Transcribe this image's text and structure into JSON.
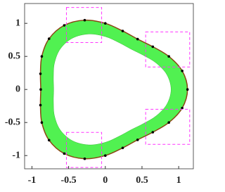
{
  "chart_data": {
    "type": "closed-curve",
    "x": [
      1.12,
      1.048,
      0.866,
      0.647,
      0.44,
      0.237,
      0,
      -0.281,
      -0.56,
      -0.767,
      -0.866,
      -0.884,
      -0.88,
      -0.884,
      -0.866,
      -0.767,
      -0.56,
      -0.281,
      0,
      0.237,
      0.44,
      0.647,
      0.866,
      1.048
    ],
    "y": [
      0,
      0.281,
      0.5,
      0.647,
      0.762,
      0.884,
      1,
      1.048,
      0.97,
      0.767,
      0.5,
      0.237,
      0,
      -0.237,
      -0.5,
      -0.767,
      -0.97,
      -1.048,
      -1,
      -0.884,
      -0.762,
      -0.647,
      -0.5,
      -0.281
    ],
    "color": "#8b4513",
    "marker_color": "#000000",
    "fill_color": "#33ee33",
    "box_color": "#ff33ff",
    "boxes": [
      [
        -0.53,
        -0.05,
        0.71,
        1.24
      ],
      [
        0.55,
        1.15,
        0.34,
        0.87
      ],
      [
        0.55,
        1.15,
        -0.83,
        -0.3
      ],
      [
        -0.53,
        -0.05,
        -1.18,
        -0.65
      ]
    ],
    "xlim": [
      -1.1,
      1.2
    ],
    "ylim": [
      -1.2,
      1.3
    ],
    "xticks": [
      -1,
      -0.5,
      0,
      0.5,
      1
    ],
    "yticks": [
      -1,
      -0.5,
      0,
      0.5,
      1
    ]
  }
}
